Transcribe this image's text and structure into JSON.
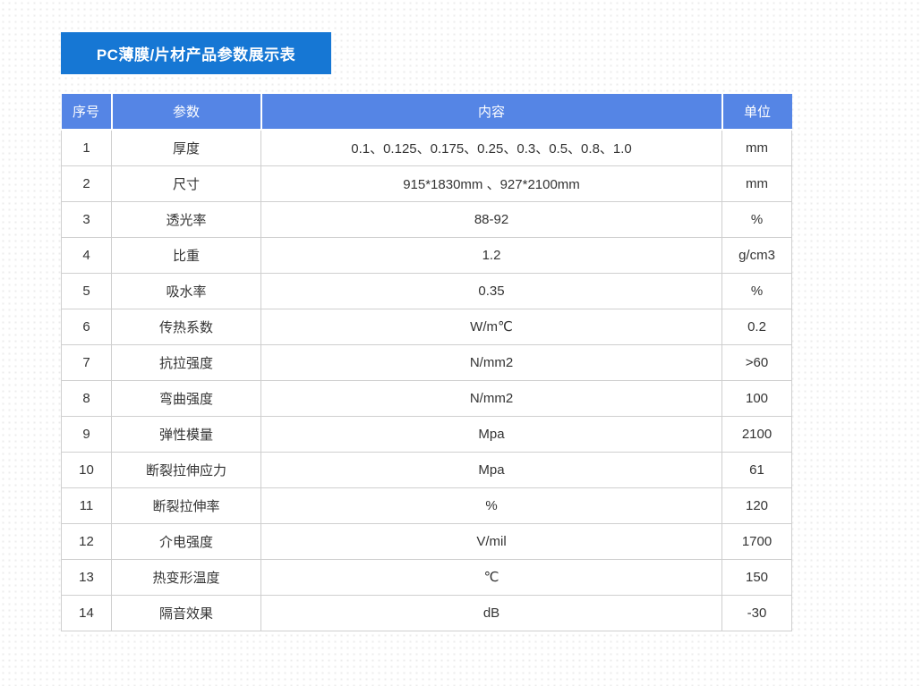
{
  "colors": {
    "title_banner_bg": "#1677d4",
    "header_bg": "#5585e5",
    "body_text": "#333333",
    "border": "#cfcfcf",
    "background_dot": "#ececec"
  },
  "title_banner": {
    "text": "PC薄膜/片材产品参数展示表"
  },
  "table": {
    "columns": [
      "序号",
      "参数",
      "内容",
      "单位"
    ],
    "rows": [
      {
        "no": "1",
        "param": "厚度",
        "content": "0.1、0.125、0.175、0.25、0.3、0.5、0.8、1.0",
        "unit": "mm"
      },
      {
        "no": "2",
        "param": "尺寸",
        "content": "915*1830mm 、927*2100mm",
        "unit": "mm"
      },
      {
        "no": "3",
        "param": "透光率",
        "content": "88-92",
        "unit": "%"
      },
      {
        "no": "4",
        "param": "比重",
        "content": "1.2",
        "unit": "g/cm3"
      },
      {
        "no": "5",
        "param": "吸水率",
        "content": "0.35",
        "unit": "%"
      },
      {
        "no": "6",
        "param": "传热系数",
        "content": "W/m℃",
        "unit": "0.2"
      },
      {
        "no": "7",
        "param": "抗拉强度",
        "content": "N/mm2",
        "unit": ">60"
      },
      {
        "no": "8",
        "param": "弯曲强度",
        "content": "N/mm2",
        "unit": "100"
      },
      {
        "no": "9",
        "param": "弹性模量",
        "content": "Mpa",
        "unit": "2100"
      },
      {
        "no": "10",
        "param": "断裂拉伸应力",
        "content": "Mpa",
        "unit": "61"
      },
      {
        "no": "11",
        "param": "断裂拉伸率",
        "content": "%",
        "unit": "120"
      },
      {
        "no": "12",
        "param": "介电强度",
        "content": "V/mil",
        "unit": "1700"
      },
      {
        "no": "13",
        "param": "热变形温度",
        "content": "℃",
        "unit": "150"
      },
      {
        "no": "14",
        "param": "隔音效果",
        "content": "dB",
        "unit": "-30"
      }
    ]
  }
}
